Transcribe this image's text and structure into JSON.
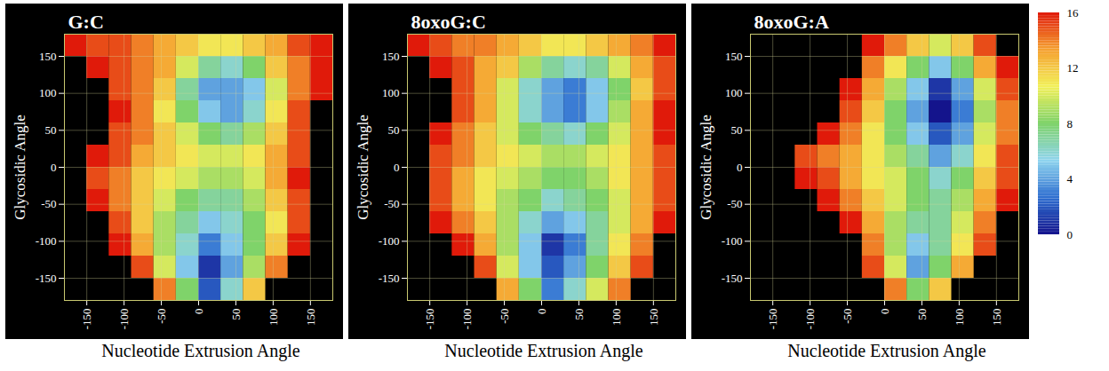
{
  "chart_data": [
    {
      "type": "heatmap",
      "title": "G:C",
      "x_label": "Nucleotide Extrusion Angle",
      "y_label": "Glycosidic Angle",
      "xlim": [
        -180,
        180
      ],
      "ylim": [
        -180,
        180
      ],
      "xticks": [
        -150,
        -100,
        -50,
        0,
        50,
        100,
        150
      ],
      "yticks": [
        -150,
        -100,
        -50,
        0,
        50,
        100,
        150
      ],
      "grid": true,
      "x_bins": [
        -180,
        -150,
        -120,
        -90,
        -60,
        -30,
        0,
        30,
        60,
        90,
        120,
        150,
        180
      ],
      "y_bins": [
        -180,
        -150,
        -120,
        -90,
        -60,
        -30,
        0,
        30,
        60,
        90,
        120,
        150,
        180
      ],
      "cells": [
        [
          null,
          null,
          null,
          null,
          14,
          8,
          2,
          6,
          12,
          null,
          null,
          null
        ],
        [
          null,
          null,
          null,
          15,
          10,
          5,
          1,
          4,
          9,
          14,
          null,
          null
        ],
        [
          null,
          null,
          16,
          13,
          9,
          6,
          3,
          5,
          8,
          12,
          16,
          null
        ],
        [
          null,
          null,
          15,
          12,
          9,
          7,
          5,
          6,
          8,
          11,
          15,
          null
        ],
        [
          null,
          16,
          14,
          12,
          10,
          8,
          7,
          7,
          9,
          12,
          15,
          null
        ],
        [
          null,
          15,
          14,
          12,
          11,
          10,
          9,
          9,
          10,
          13,
          16,
          null
        ],
        [
          null,
          16,
          15,
          13,
          12,
          11,
          10,
          10,
          11,
          13,
          15,
          null
        ],
        [
          null,
          null,
          15,
          14,
          12,
          10,
          8,
          7,
          9,
          12,
          15,
          null
        ],
        [
          null,
          null,
          16,
          14,
          11,
          8,
          5,
          4,
          6,
          11,
          15,
          null
        ],
        [
          null,
          null,
          15,
          14,
          12,
          7,
          4,
          4,
          5,
          10,
          14,
          16
        ],
        [
          null,
          16,
          15,
          14,
          13,
          10,
          7,
          6,
          8,
          12,
          14,
          16
        ],
        [
          16,
          15,
          15,
          14,
          13,
          12,
          11,
          11,
          12,
          13,
          15,
          16
        ]
      ]
    },
    {
      "type": "heatmap",
      "title": "8oxoG:C",
      "x_label": "Nucleotide Extrusion Angle",
      "y_label": "Glycosidic Angle",
      "xlim": [
        -180,
        180
      ],
      "ylim": [
        -180,
        180
      ],
      "xticks": [
        -150,
        -100,
        -50,
        0,
        50,
        100,
        150
      ],
      "yticks": [
        -150,
        -100,
        -50,
        0,
        50,
        100,
        150
      ],
      "grid": true,
      "x_bins": [
        -180,
        -150,
        -120,
        -90,
        -60,
        -30,
        0,
        30,
        60,
        90,
        120,
        150,
        180
      ],
      "y_bins": [
        -180,
        -150,
        -120,
        -90,
        -60,
        -30,
        0,
        30,
        60,
        90,
        120,
        150,
        180
      ],
      "cells": [
        [
          null,
          null,
          null,
          null,
          13,
          8,
          3,
          6,
          10,
          14,
          null,
          null
        ],
        [
          null,
          null,
          null,
          15,
          10,
          5,
          2,
          4,
          8,
          12,
          15,
          null
        ],
        [
          null,
          null,
          16,
          13,
          9,
          5,
          1,
          3,
          7,
          11,
          14,
          null
        ],
        [
          null,
          16,
          14,
          12,
          9,
          6,
          4,
          5,
          7,
          10,
          13,
          16
        ],
        [
          null,
          15,
          13,
          11,
          9,
          8,
          6,
          7,
          8,
          10,
          13,
          15
        ],
        [
          null,
          15,
          13,
          11,
          10,
          9,
          8,
          8,
          9,
          11,
          13,
          15
        ],
        [
          null,
          15,
          14,
          12,
          11,
          10,
          9,
          9,
          10,
          11,
          13,
          15
        ],
        [
          null,
          16,
          14,
          12,
          10,
          8,
          7,
          6,
          8,
          10,
          13,
          16
        ],
        [
          null,
          null,
          15,
          13,
          10,
          6,
          4,
          3,
          5,
          9,
          13,
          16
        ],
        [
          null,
          null,
          15,
          13,
          10,
          6,
          4,
          3,
          5,
          8,
          12,
          15
        ],
        [
          null,
          16,
          15,
          13,
          12,
          9,
          7,
          6,
          7,
          10,
          13,
          15
        ],
        [
          16,
          15,
          14,
          14,
          13,
          12,
          11,
          11,
          12,
          13,
          14,
          16
        ]
      ]
    },
    {
      "type": "heatmap",
      "title": "8oxoG:A",
      "x_label": "Nucleotide Extrusion Angle",
      "y_label": "Glycosidic Angle",
      "xlim": [
        -180,
        180
      ],
      "ylim": [
        -180,
        180
      ],
      "xticks": [
        -150,
        -100,
        -50,
        0,
        50,
        100,
        150
      ],
      "yticks": [
        -150,
        -100,
        -50,
        0,
        50,
        100,
        150
      ],
      "grid": true,
      "x_bins": [
        -180,
        -150,
        -120,
        -90,
        -60,
        -30,
        0,
        30,
        60,
        90,
        120,
        150,
        180
      ],
      "y_bins": [
        -180,
        -150,
        -120,
        -90,
        -60,
        -30,
        0,
        30,
        60,
        90,
        120,
        150,
        180
      ],
      "cells": [
        [
          null,
          null,
          null,
          null,
          null,
          null,
          14,
          8,
          12,
          null,
          null,
          null
        ],
        [
          null,
          null,
          null,
          null,
          null,
          15,
          10,
          4,
          8,
          13,
          null,
          null
        ],
        [
          null,
          null,
          null,
          null,
          null,
          14,
          9,
          5,
          7,
          11,
          15,
          null
        ],
        [
          null,
          null,
          null,
          null,
          16,
          13,
          9,
          7,
          7,
          10,
          14,
          null
        ],
        [
          null,
          null,
          null,
          16,
          14,
          12,
          10,
          8,
          7,
          9,
          13,
          16
        ],
        [
          null,
          null,
          16,
          15,
          13,
          11,
          10,
          8,
          6,
          8,
          12,
          15
        ],
        [
          null,
          null,
          15,
          14,
          13,
          11,
          9,
          7,
          4,
          6,
          11,
          15
        ],
        [
          null,
          null,
          null,
          16,
          14,
          11,
          8,
          5,
          2,
          4,
          10,
          14
        ],
        [
          null,
          null,
          null,
          null,
          15,
          12,
          8,
          4,
          0,
          3,
          9,
          14
        ],
        [
          null,
          null,
          null,
          null,
          16,
          13,
          9,
          5,
          1,
          4,
          10,
          15
        ],
        [
          null,
          null,
          null,
          null,
          null,
          14,
          11,
          8,
          5,
          8,
          13,
          16
        ],
        [
          null,
          null,
          null,
          null,
          null,
          16,
          14,
          12,
          10,
          12,
          15,
          null
        ]
      ],
      "colorbar": {
        "range": [
          0,
          16
        ],
        "ticks": [
          0,
          4,
          8,
          12,
          16
        ]
      }
    }
  ]
}
